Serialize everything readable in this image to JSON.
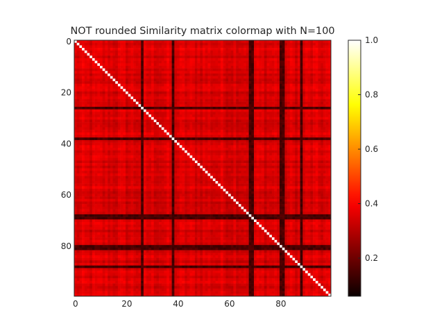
{
  "chart_data": {
    "type": "heatmap",
    "title": "NOT rounded Similarity matrix colormap with N=100",
    "n": 100,
    "colormap": "hot",
    "x_ticks": [
      "0",
      "20",
      "40",
      "60",
      "80"
    ],
    "y_ticks": [
      "0",
      "20",
      "40",
      "60",
      "80"
    ],
    "colorbar": {
      "range": [
        0.06,
        1.0
      ],
      "ticks": [
        "0.2",
        "0.4",
        "0.6",
        "0.8",
        "1.0"
      ]
    },
    "diagonal_value": 1.0,
    "typical_off_diagonal_range": [
      0.28,
      0.42
    ],
    "low_similarity_indices": [
      26,
      38,
      68,
      69,
      80,
      81,
      88
    ],
    "low_similarity_value": 0.12
  }
}
